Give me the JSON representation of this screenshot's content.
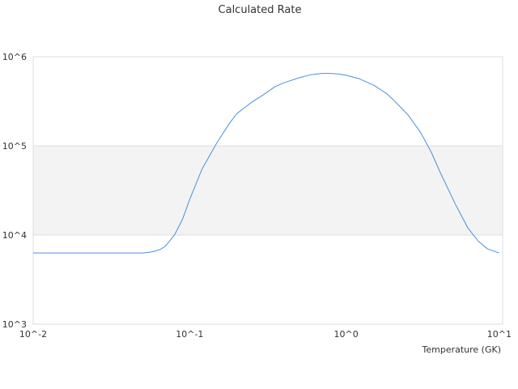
{
  "chart_data": {
    "type": "line",
    "title": "Calculated Rate",
    "xlabel": "Temperature (GK)",
    "ylabel": "",
    "x_scale": "log",
    "y_scale": "log",
    "xlim": [
      0.01,
      10
    ],
    "ylim": [
      1000,
      1000000
    ],
    "x_ticks": [
      {
        "value": 0.01,
        "label": "10^-2"
      },
      {
        "value": 0.1,
        "label": "10^-1"
      },
      {
        "value": 1,
        "label": "10^0"
      },
      {
        "value": 10,
        "label": "10^1"
      }
    ],
    "y_ticks": [
      {
        "value": 1000,
        "label": "10^3"
      },
      {
        "value": 10000,
        "label": "10^4"
      },
      {
        "value": 100000,
        "label": "10^5"
      },
      {
        "value": 1000000,
        "label": "10^6"
      }
    ],
    "grid": true,
    "legend": "none",
    "colors": {
      "line": "#4a90d9",
      "band": "#f3f3f3",
      "grid": "#dddddd"
    },
    "series": [
      {
        "x": [
          0.01,
          0.02,
          0.03,
          0.04,
          0.05,
          0.055,
          0.06,
          0.065,
          0.07,
          0.08,
          0.09,
          0.1,
          0.12,
          0.15,
          0.18,
          0.2,
          0.25,
          0.3,
          0.35,
          0.4,
          0.5,
          0.6,
          0.7,
          0.8,
          0.9,
          1.0,
          1.2,
          1.5,
          1.8,
          2.0,
          2.5,
          3.0,
          3.5,
          4.0,
          5.0,
          6.0,
          7.0,
          8.0,
          9.0,
          9.5
        ],
        "y": [
          6300,
          6300,
          6300,
          6300,
          6300,
          6400,
          6600,
          6900,
          7500,
          10000,
          15000,
          25000,
          55000,
          110000,
          180000,
          230000,
          310000,
          380000,
          460000,
          510000,
          580000,
          630000,
          650000,
          650000,
          640000,
          620000,
          570000,
          480000,
          390000,
          330000,
          220000,
          140000,
          85000,
          50000,
          22000,
          12000,
          8500,
          7000,
          6500,
          6300
        ]
      }
    ]
  }
}
